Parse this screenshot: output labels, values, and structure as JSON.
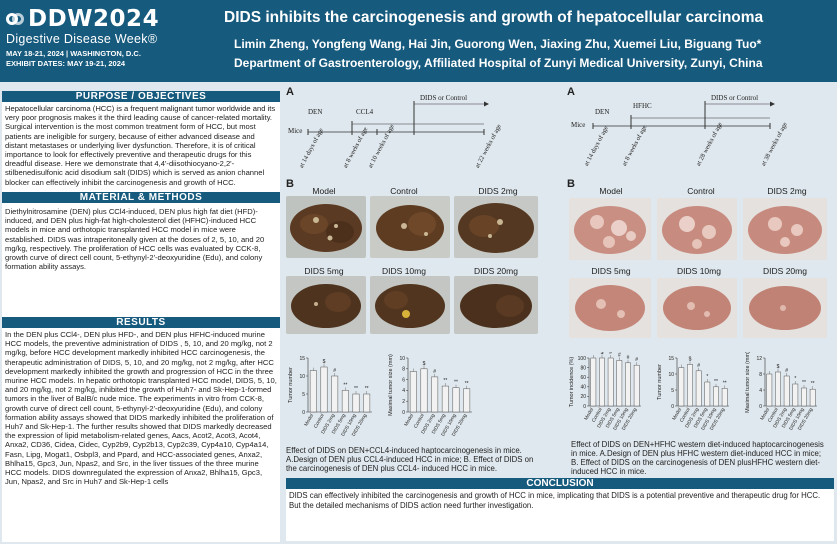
{
  "header": {
    "logo_main": "DDW2024",
    "logo_sub": "Digestive Disease Week®",
    "logo_dates": "MAY 18-21, 2024 | WASHINGTON, D.C.",
    "logo_exhibit": "EXHIBIT DATES: MAY 19-21, 2024",
    "title": "DIDS inhibits the carcinogenesis and growth of hepatocellular carcinoma",
    "authors": "Limin Zheng, Yongfeng Wang, Hai Jin, Guorong Wen, Jiaxing Zhu, Xuemei Liu, Biguang Tuo*",
    "affiliation": "Department of Gastroenterology, Affiliated Hospital of Zunyi Medical University, Zunyi, China",
    "colors": {
      "header_bg": "#165a7e",
      "page_bg": "#dfe8ee"
    }
  },
  "purpose": {
    "heading": "PURPOSE / OBJECTIVES",
    "text": "Hepatocellular carcinoma (HCC) is a frequent malignant tumor worldwide and its very poor prognosis makes it the third leading cause of cancer-related mortality. Surgical intervention is the most common treatment form of HCC, but most patients are ineligible for surgery, because of either advanced disease and distant metastases or underlying liver dysfunction. Therefore, it is of critical importance to look for effectively preventive and therapeutic drugs for this dreadful disease. Here we demonstrate that 4,4'-diisothiocyano-2,2'-stilbenedisulfonic acid disodium salt (DIDS) which is served as anion channel blocker can effectively inhibit the carcinogenesis and growth of HCC."
  },
  "methods": {
    "heading": "MATERIAL & METHODS",
    "text": "Diethylnitrosamine (DEN) plus CCl4-induced, DEN plus high fat diet (HFD)-induced, and DEN plus high-fat high-cholesterol diet (HFHC)-induced HCC models in mice and orthotopic transplanted HCC model in mice were established. DIDS was intraperitoneally given at the doses of 2, 5, 10, and 20 mg/kg, respectively. The proliferation of HCC cells was evaluated by CCK-8, growth curve of direct cell count, 5-ethynyl-2'-deoxyuridine (Edu), and colony formation ability assays."
  },
  "results": {
    "heading": "RESULTS",
    "text": "In the DEN plus CCl4-, DEN plus HFD-, and DEN plus HFHC-induced murine HCC models, the preventive administration of DIDS , 5, 10, and 20 mg/kg, not 2 mg/kg, before HCC development markedly inhibited HCC carcinogenesis, the therapeutic administration of DIDS, 5, 10, and 20 mg/kg, not 2 mg/kg, after HCC development markedly inhibited the growth and progression of HCC in the three murine HCC models. In hepatic orthotopic transplanted HCC model, DIDS, 5, 10, and 20 mg/kg, not 2 mg/kg, inhibited the growth of Huh7- and Sk-Hep-1-formed tumors in the liver of BalB/c nude mice. The experiments in vitro from CCK-8, growth curve of direct cell count, 5-ethynyl-2'-deoxyuridine (Edu), and colony formation ability assays showed that DIDS markedly inhibited the proliferation of Huh7 and Sk-Hep-1. The further results showed that DIDS markedly decreased the expression of lipid metabolism-related genes, Aacs, Acot2, Acot3, Acot4, Anxa2, CD36, Cidea, Cidec, Cyp2b9, Cyp2b13, Cyp2c39, Cyp4a10, Cyp4a14, Fasn, Lipg, Mogat1, Osbpl3, and Ppard, and HCC-associated genes, Anxa2, Bhlha15, Gpc3, Jun, Npas2, and Src, in the liver tissues of the three murine HCC models. DIDS downregulated the expression of Anxa2, Bhlha15, Gpc3, Jun, Npas2, and Src in Huh7 and Sk-Hep-1 cells"
  },
  "panel_left": {
    "a_letter": "A",
    "b_letter": "B",
    "timeline": {
      "mice": "Mice",
      "den": "DEN",
      "ccl4": "CCL4",
      "dids": "DIDS or Control",
      "ticks": [
        "at 14 days of age",
        "at 8 weeks of age",
        "at 10 weeks of age",
        "at 22 weeks of age"
      ]
    },
    "liver_labels": [
      "Model",
      "Control",
      "DIDS 2mg",
      "DIDS 5mg",
      "DIDS 10mg",
      "DIDS 20mg"
    ],
    "caption": "Effect of DIDS on DEN+CCL4-induced haptocarcinogenesis in mice. A.Design of DEN plus CCL4-induced HCC in mice; B. Effect of DIDS on the carcinogenesis of DEN plus CCL4- induced HCC in mice."
  },
  "panel_right": {
    "a_letter": "A",
    "b_letter": "B",
    "timeline": {
      "mice": "Mice",
      "den": "DEN",
      "hfhc": "HFHC",
      "dids": "DIDS or Control",
      "ticks": [
        "at 14 days of age",
        "at 8 weeks of age",
        "at 28 weeks of age",
        "at 38 weeks of age"
      ]
    },
    "liver_labels": [
      "Model",
      "Control",
      "DIDS 2mg",
      "DIDS 5mg",
      "DIDS 10mg",
      "DIDS 20mg"
    ],
    "caption": "Effect of DIDS on DEN+HFHC western diet-induced haptocarcinogenesis in mice. A.Design of DEN plus HFHC western diet-induced HCC in mice; B. Effect of DIDS on the carcinogenesis of DEN plusHFHC western diet- induced HCC in mice."
  },
  "chart_data": [
    {
      "type": "bar",
      "ylabel": "Tumor number",
      "categories": [
        "Model",
        "Control",
        "DIDS 2mg",
        "DIDS 5mg",
        "DIDS 10mg",
        "DIDS 20mg"
      ],
      "values": [
        11.5,
        12.5,
        10,
        6,
        5,
        5
      ],
      "ylim": [
        0,
        15
      ],
      "yticks": [
        "0",
        "5",
        "10",
        "15"
      ],
      "markers": [
        "",
        "$",
        "#",
        "**",
        "**",
        "**"
      ]
    },
    {
      "type": "bar",
      "ylabel": "Maximal tumor size (mm)",
      "categories": [
        "Model",
        "Control",
        "DIDS 2mg",
        "DIDS 5mg",
        "DIDS 10mg",
        "DIDS 20mg"
      ],
      "values": [
        7.5,
        8,
        6.5,
        4.8,
        4.5,
        4.3
      ],
      "ylim": [
        0,
        10
      ],
      "yticks": [
        "0",
        "2",
        "4",
        "6",
        "8",
        "10"
      ],
      "markers": [
        "",
        "$",
        "#",
        "**",
        "**",
        "**"
      ]
    },
    {
      "type": "bar",
      "ylabel": "Tumor incidence (%)",
      "categories": [
        "Model",
        "Control",
        "DIDS 2mg",
        "DIDS 5mg",
        "DIDS 10mg",
        "DIDS 20mg"
      ],
      "values": [
        100,
        100,
        100,
        95,
        90,
        85
      ],
      "ylim": [
        0,
        100
      ],
      "yticks": [
        "0",
        "20",
        "40",
        "60",
        "80",
        "100"
      ],
      "markers": [
        "",
        "$",
        "#",
        "#",
        "#",
        "#"
      ]
    },
    {
      "type": "bar",
      "ylabel": "Tumor number",
      "categories": [
        "Model",
        "Control",
        "DIDS 2mg",
        "DIDS 5mg",
        "DIDS 10mg",
        "DIDS 20mg"
      ],
      "values": [
        12,
        13,
        11,
        7.5,
        6,
        5.5
      ],
      "ylim": [
        0,
        15
      ],
      "yticks": [
        "0",
        "5",
        "10",
        "15"
      ],
      "markers": [
        "",
        "$",
        "#",
        "*",
        "**",
        "**"
      ]
    },
    {
      "type": "bar",
      "ylabel": "Maximal tumor size (mm)",
      "categories": [
        "Model",
        "Control",
        "DIDS 2mg",
        "DIDS 5mg",
        "DIDS 10mg",
        "DIDS 20mg"
      ],
      "values": [
        8,
        8.5,
        7.5,
        5.5,
        4.5,
        4.2
      ],
      "ylim": [
        0,
        12
      ],
      "yticks": [
        "0",
        "4",
        "8",
        "12"
      ],
      "markers": [
        "",
        "$",
        "#",
        "*",
        "**",
        "**"
      ]
    }
  ],
  "conclusion": {
    "heading": "CONCLUSION",
    "text": "DIDS can effectively inhibited the carcinogenesis and growth of HCC in mice, implicating that DIDS is a potential preventive and therapeutic drug for HCC.  But the detailed mechanisms of DIDS action need further investigation."
  }
}
